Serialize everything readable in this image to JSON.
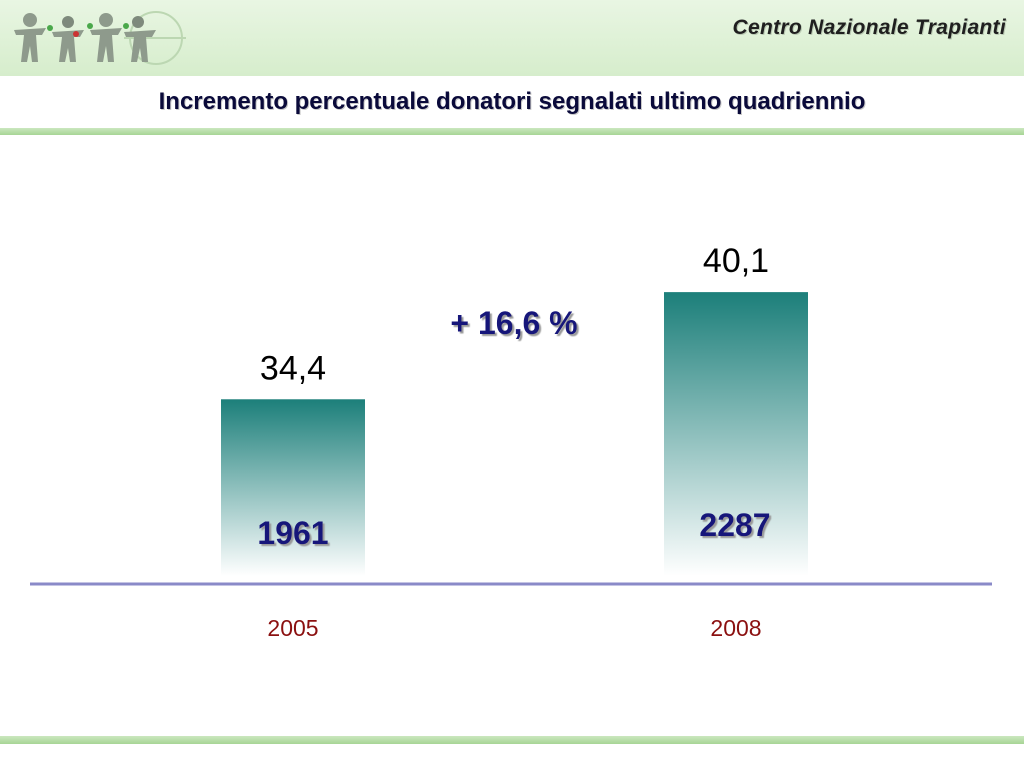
{
  "header": {
    "org_name": "Centro Nazionale Trapianti"
  },
  "colors": {
    "bar_top": "#1c7f7a",
    "bar_bottom": "#ffffff",
    "baseline": "#8a8ac8",
    "change_label": "#12127a",
    "year_label": "#8b1010",
    "header_band": "#d9efd0"
  },
  "chart_data": {
    "type": "bar",
    "title": "Incremento percentuale donatori segnalati ultimo quadriennio",
    "categories": [
      "2005",
      "2008"
    ],
    "values": [
      34.4,
      40.1
    ],
    "value_labels": [
      "34,4",
      "40,1"
    ],
    "bar_annotations": [
      "1961",
      "2287"
    ],
    "change_annotation": "+ 16,6 %",
    "xlabel": "",
    "ylabel": "",
    "ylim": [
      25,
      45
    ],
    "grid": false,
    "legend": "none"
  }
}
